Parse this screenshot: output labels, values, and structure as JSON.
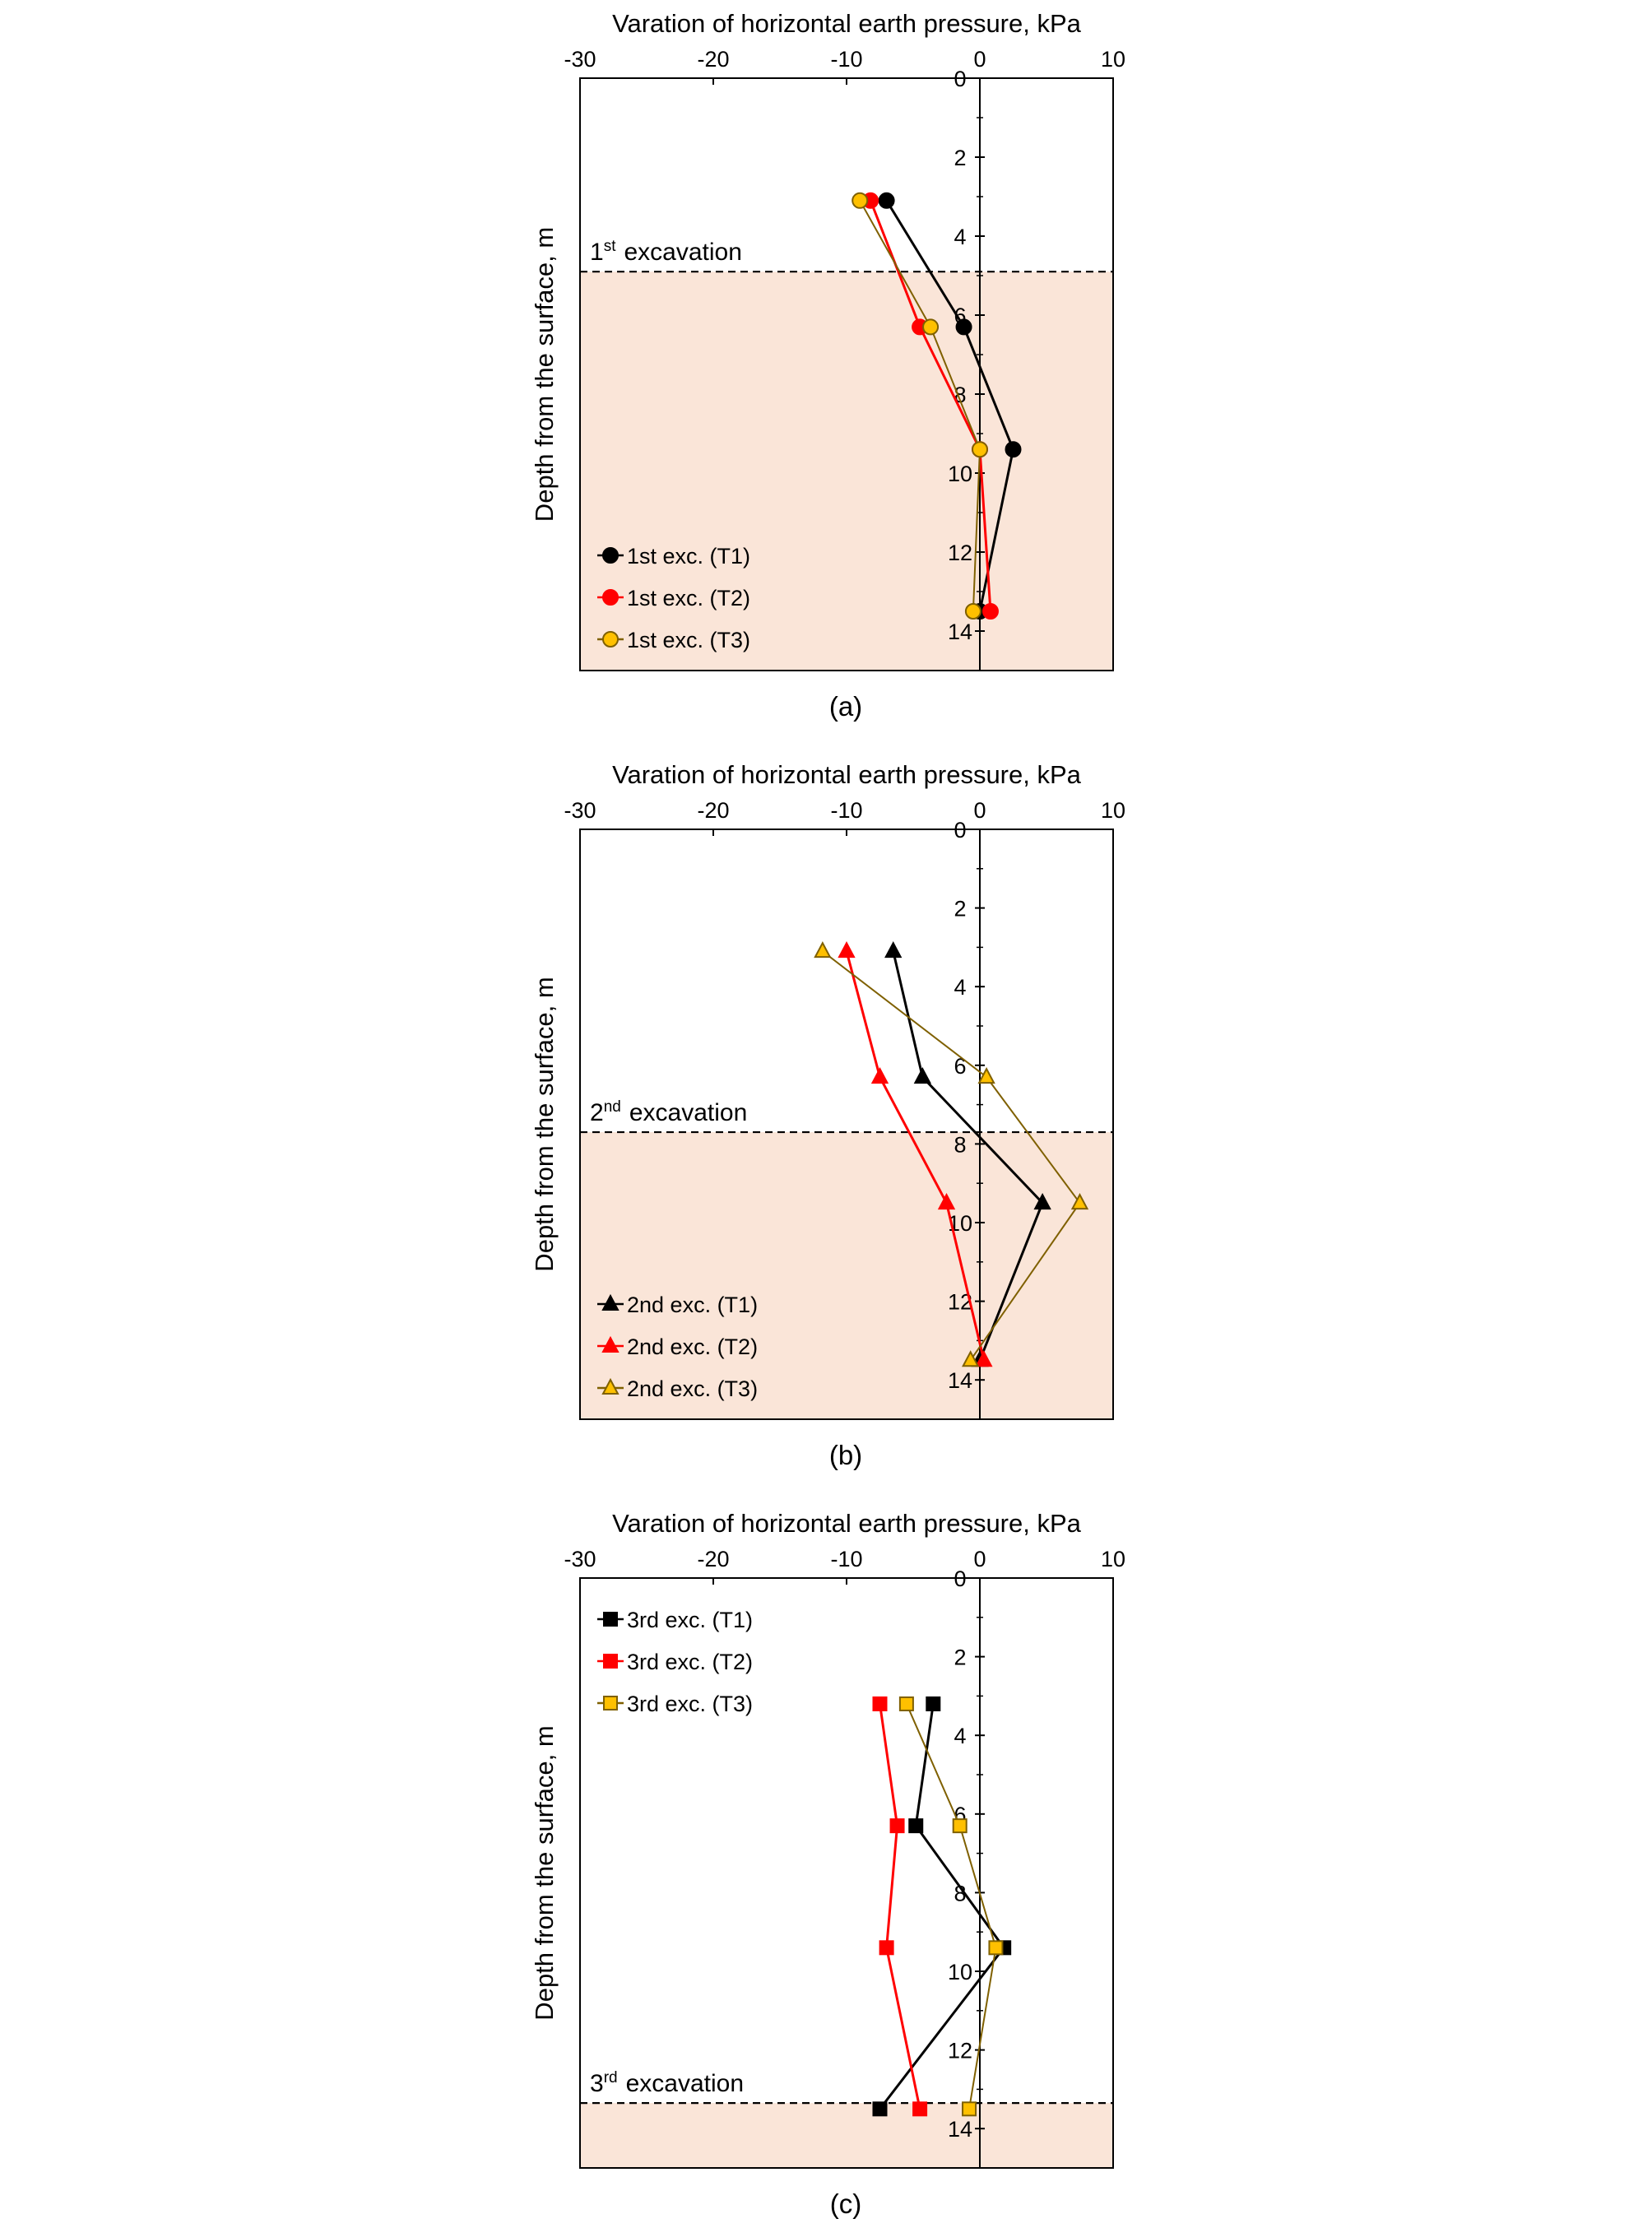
{
  "chart_data": [
    {
      "type": "line",
      "panel_label": "(a)",
      "xlabel": "Varation of horizontal earth pressure, kPa",
      "ylabel": "Depth from the surface, m",
      "xlim": [
        -30,
        10
      ],
      "ylim": [
        0,
        15
      ],
      "x_ticks": [
        -30,
        -20,
        -10,
        0,
        10
      ],
      "y_ticks": [
        0,
        2,
        4,
        6,
        8,
        10,
        12,
        14
      ],
      "excavation": {
        "depth": 4.9,
        "label_main": "1",
        "label_sup": "st",
        "label_rest": "excavation"
      },
      "shade_color": "#fae5d8",
      "legend_position": "lower-left",
      "series": [
        {
          "name": "1st exc. (T1)",
          "marker": "circle",
          "color": "#000000",
          "fill": "#000000",
          "x": [
            -7,
            -1.2,
            2.5,
            0
          ],
          "y": [
            3.1,
            6.3,
            9.4,
            13.5
          ]
        },
        {
          "name": "1st exc. (T2)",
          "marker": "circle",
          "color": "#ff0000",
          "fill": "#ff0000",
          "x": [
            -8.2,
            -4.5,
            0,
            0.8
          ],
          "y": [
            3.1,
            6.3,
            9.4,
            13.5
          ]
        },
        {
          "name": "1st exc. (T3)",
          "marker": "circle",
          "color": "#7f6000",
          "fill": "#ffc000",
          "x": [
            -9,
            -3.7,
            0,
            -0.5
          ],
          "y": [
            3.1,
            6.3,
            9.4,
            13.5
          ]
        }
      ]
    },
    {
      "type": "line",
      "panel_label": "(b)",
      "xlabel": "Varation of horizontal earth pressure, kPa",
      "ylabel": "Depth from the surface, m",
      "xlim": [
        -30,
        10
      ],
      "ylim": [
        0,
        15
      ],
      "x_ticks": [
        -30,
        -20,
        -10,
        0,
        10
      ],
      "y_ticks": [
        0,
        2,
        4,
        6,
        8,
        10,
        12,
        14
      ],
      "excavation": {
        "depth": 7.7,
        "label_main": "2",
        "label_sup": "nd",
        "label_rest": "excavation"
      },
      "shade_color": "#fae5d8",
      "legend_position": "lower-left",
      "series": [
        {
          "name": "2nd exc. (T1)",
          "marker": "triangle",
          "color": "#000000",
          "fill": "#000000",
          "x": [
            -6.5,
            -4.3,
            4.7,
            0
          ],
          "y": [
            3.1,
            6.3,
            9.5,
            13.5
          ]
        },
        {
          "name": "2nd exc. (T2)",
          "marker": "triangle",
          "color": "#ff0000",
          "fill": "#ff0000",
          "x": [
            -10,
            -7.5,
            -2.5,
            0.3
          ],
          "y": [
            3.1,
            6.3,
            9.5,
            13.5
          ]
        },
        {
          "name": "2nd exc. (T3)",
          "marker": "triangle",
          "color": "#7f6000",
          "fill": "#ffc000",
          "x": [
            -11.8,
            0.5,
            7.5,
            -0.7
          ],
          "y": [
            3.1,
            6.3,
            9.5,
            13.5
          ]
        }
      ]
    },
    {
      "type": "line",
      "panel_label": "(c)",
      "xlabel": "Varation of horizontal earth pressure, kPa",
      "ylabel": "Depth from the surface, m",
      "xlim": [
        -30,
        10
      ],
      "ylim": [
        0,
        15
      ],
      "x_ticks": [
        -30,
        -20,
        -10,
        0,
        10
      ],
      "y_ticks": [
        0,
        2,
        4,
        6,
        8,
        10,
        12,
        14
      ],
      "excavation": {
        "depth": 13.35,
        "label_main": "3",
        "label_sup": "rd",
        "label_rest": "excavation"
      },
      "shade_color": "#fae5d8",
      "legend_position": "upper-left",
      "series": [
        {
          "name": "3rd exc. (T1)",
          "marker": "square",
          "color": "#000000",
          "fill": "#000000",
          "x": [
            -3.5,
            -4.8,
            1.8,
            -7.5
          ],
          "y": [
            3.2,
            6.3,
            9.4,
            13.5
          ]
        },
        {
          "name": "3rd exc. (T2)",
          "marker": "square",
          "color": "#ff0000",
          "fill": "#ff0000",
          "x": [
            -7.5,
            -6.2,
            -7,
            -4.5
          ],
          "y": [
            3.2,
            6.3,
            9.4,
            13.5
          ]
        },
        {
          "name": "3rd exc. (T3)",
          "marker": "square",
          "color": "#7f6000",
          "fill": "#ffc000",
          "x": [
            -5.5,
            -1.5,
            1.2,
            -0.8
          ],
          "y": [
            3.2,
            6.3,
            9.4,
            13.5
          ]
        }
      ]
    }
  ]
}
